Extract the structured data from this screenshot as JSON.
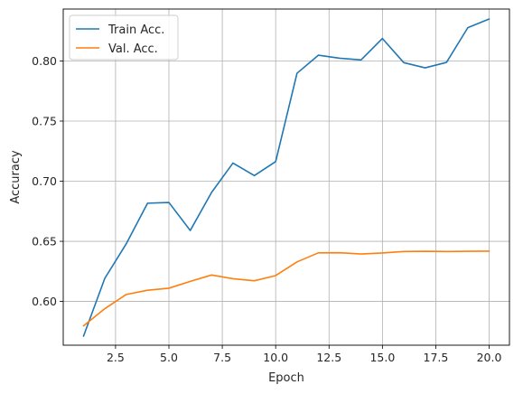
{
  "chart_data": {
    "type": "line",
    "title": "",
    "xlabel": "Epoch",
    "ylabel": "Accuracy",
    "xlim": [
      0.05,
      20.95
    ],
    "ylim": [
      0.5636,
      0.8432
    ],
    "xticks": [
      2.5,
      5.0,
      7.5,
      10.0,
      12.5,
      15.0,
      17.5,
      20.0
    ],
    "xtick_labels": [
      "2.5",
      "5.0",
      "7.5",
      "10.0",
      "12.5",
      "15.0",
      "17.5",
      "20.0"
    ],
    "yticks": [
      0.6,
      0.65,
      0.7,
      0.75,
      0.8
    ],
    "ytick_labels": [
      "0.60",
      "0.65",
      "0.70",
      "0.75",
      "0.80"
    ],
    "grid": true,
    "legend_position": "top-left",
    "x": [
      1,
      2,
      3,
      4,
      5,
      6,
      7,
      8,
      9,
      10,
      11,
      12,
      13,
      14,
      15,
      16,
      17,
      18,
      19,
      20
    ],
    "series": [
      {
        "name": "Train Acc.",
        "color": "#1f77b4",
        "values": [
          0.5711,
          0.6193,
          0.6479,
          0.6817,
          0.6823,
          0.659,
          0.6907,
          0.7151,
          0.7047,
          0.7163,
          0.7898,
          0.8048,
          0.8023,
          0.8009,
          0.8187,
          0.7986,
          0.7943,
          0.7988,
          0.8277,
          0.8349
        ]
      },
      {
        "name": "Val. Acc.",
        "color": "#ff7f0e",
        "values": [
          0.5797,
          0.594,
          0.6058,
          0.6093,
          0.611,
          0.6167,
          0.622,
          0.6189,
          0.6172,
          0.6215,
          0.6329,
          0.6404,
          0.6405,
          0.6395,
          0.6403,
          0.6415,
          0.6417,
          0.6415,
          0.6417,
          0.6418
        ]
      }
    ]
  }
}
